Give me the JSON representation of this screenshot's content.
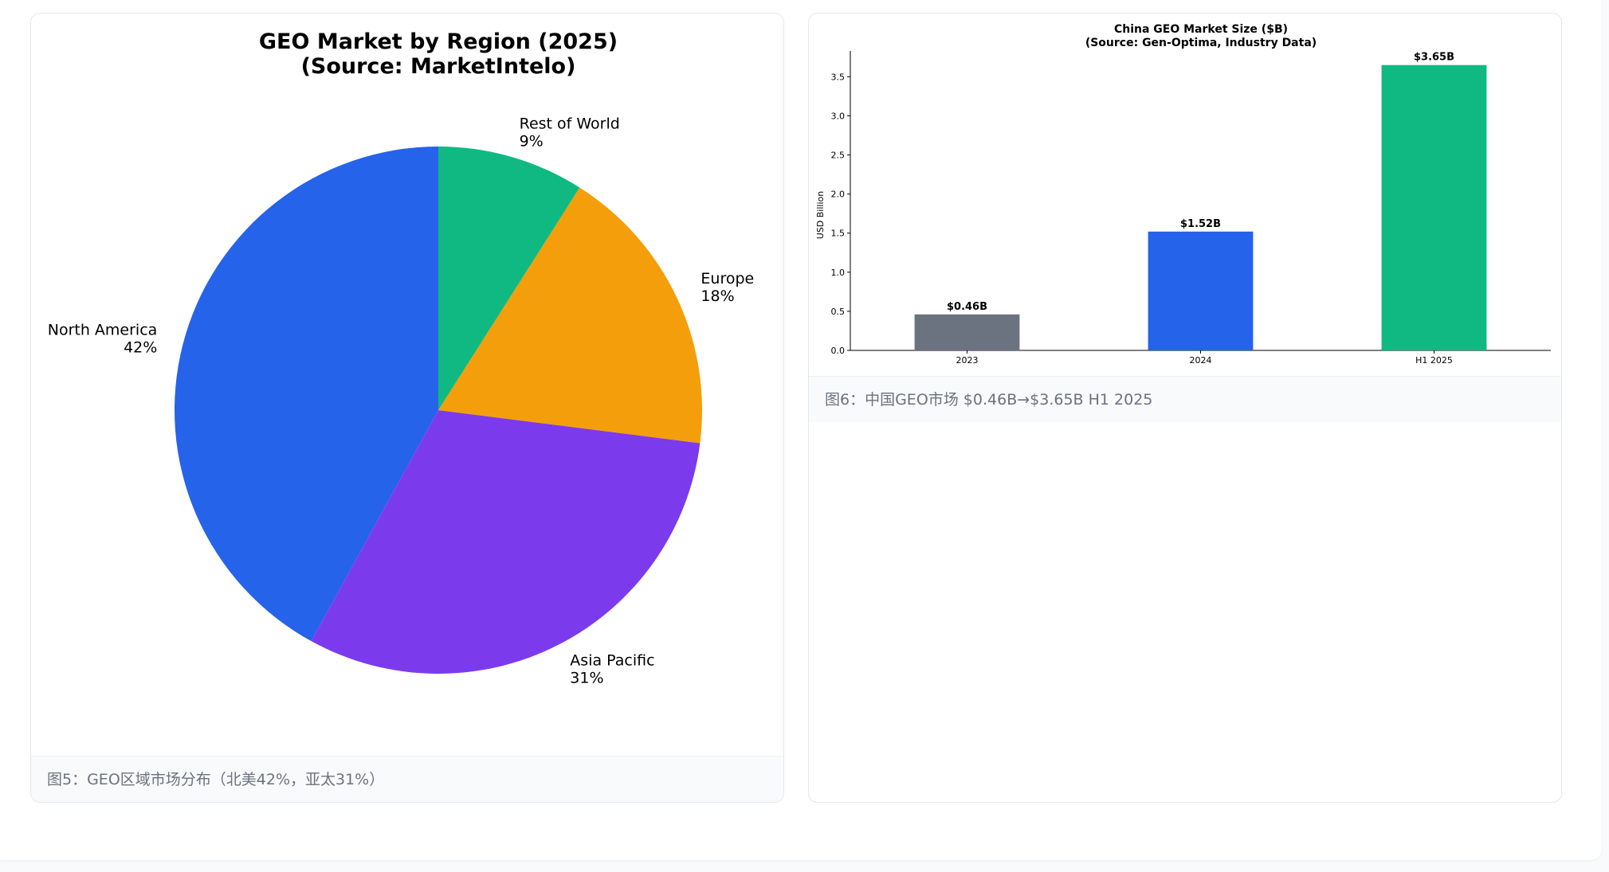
{
  "colors": {
    "north_america": "#2563eb",
    "asia_pacific": "#7c3aed",
    "europe": "#f59e0b",
    "rest_of_world": "#10b981",
    "bar_2023": "#6b7280",
    "bar_2024": "#2563eb",
    "bar_h1_2025": "#10b981"
  },
  "pie_card": {
    "title_line1": "GEO Market by Region (2025)",
    "title_line2": "(Source: MarketIntelo)",
    "caption": "图5：GEO区域市场分布（北美42%，亚太31%）"
  },
  "bar_card": {
    "title_line1": "China GEO Market Size ($B)",
    "title_line2": "(Source: Gen-Optima, Industry Data)",
    "caption": "图6：中国GEO市场 $0.46B→$3.65B H1 2025"
  },
  "chart_data": [
    {
      "type": "pie",
      "title": "GEO Market by Region (2025)\n(Source: MarketIntelo)",
      "start_angle_deg": 90,
      "direction": "counterclockwise",
      "slices": [
        {
          "label": "North America",
          "value": 42,
          "pct_label": "42%",
          "color_key": "north_america"
        },
        {
          "label": "Asia Pacific",
          "value": 31,
          "pct_label": "31%",
          "color_key": "asia_pacific"
        },
        {
          "label": "Europe",
          "value": 18,
          "pct_label": "18%",
          "color_key": "europe"
        },
        {
          "label": "Rest of World",
          "value": 9,
          "pct_label": "9%",
          "color_key": "rest_of_world"
        }
      ]
    },
    {
      "type": "bar",
      "title": "China GEO Market Size ($B)\n(Source: Gen-Optima, Industry Data)",
      "ylabel": "USD Billion",
      "xlabel": "",
      "ylim": [
        0,
        3.83
      ],
      "yticks": [
        "0.0",
        "0.5",
        "1.0",
        "1.5",
        "2.0",
        "2.5",
        "3.0",
        "3.5"
      ],
      "grid": false,
      "categories": [
        "2023",
        "2024",
        "H1 2025"
      ],
      "values": [
        0.46,
        1.52,
        3.65
      ],
      "data_labels": [
        "$0.46B",
        "$1.52B",
        "$3.65B"
      ],
      "color_keys": [
        "bar_2023",
        "bar_2024",
        "bar_h1_2025"
      ]
    }
  ]
}
